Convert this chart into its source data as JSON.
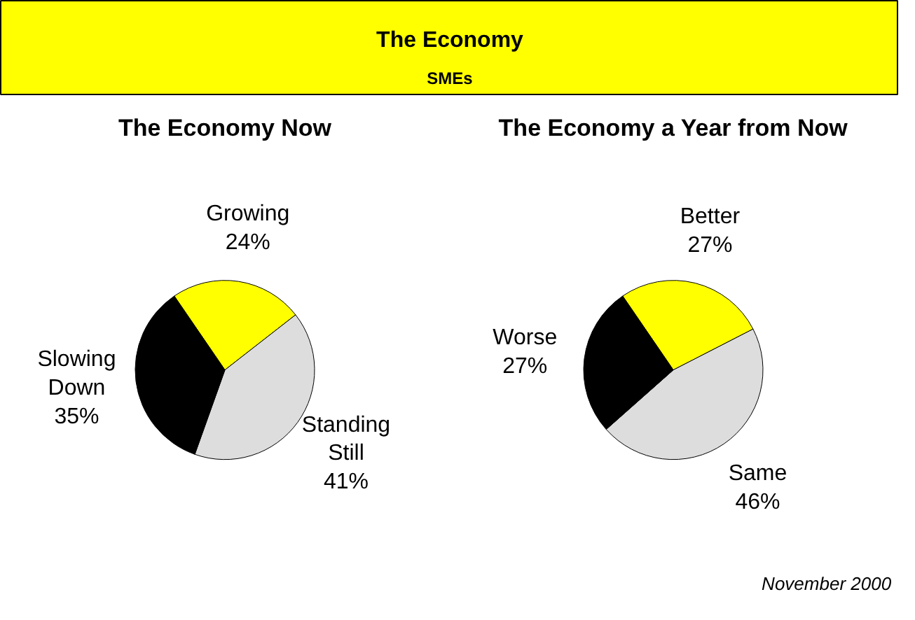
{
  "chart_data": [
    {
      "type": "other",
      "title": "The Economy",
      "subtitle": "SMEs"
    },
    {
      "type": "pie",
      "title": "The Economy Now",
      "categories": [
        "Growing",
        "Standing Still",
        "Slowing Down"
      ],
      "values": [
        24,
        41,
        35
      ],
      "value_labels": [
        "24%",
        "41%",
        "35%"
      ],
      "colors": [
        "#ffff00",
        "#dddddd",
        "#000000"
      ]
    },
    {
      "type": "pie",
      "title": "The Economy a Year from Now",
      "categories": [
        "Better",
        "Same",
        "Worse"
      ],
      "values": [
        27,
        46,
        27
      ],
      "value_labels": [
        "27%",
        "46%",
        "27%"
      ],
      "colors": [
        "#ffff00",
        "#dddddd",
        "#000000"
      ],
      "annotations": [
        "November 2000"
      ]
    }
  ]
}
